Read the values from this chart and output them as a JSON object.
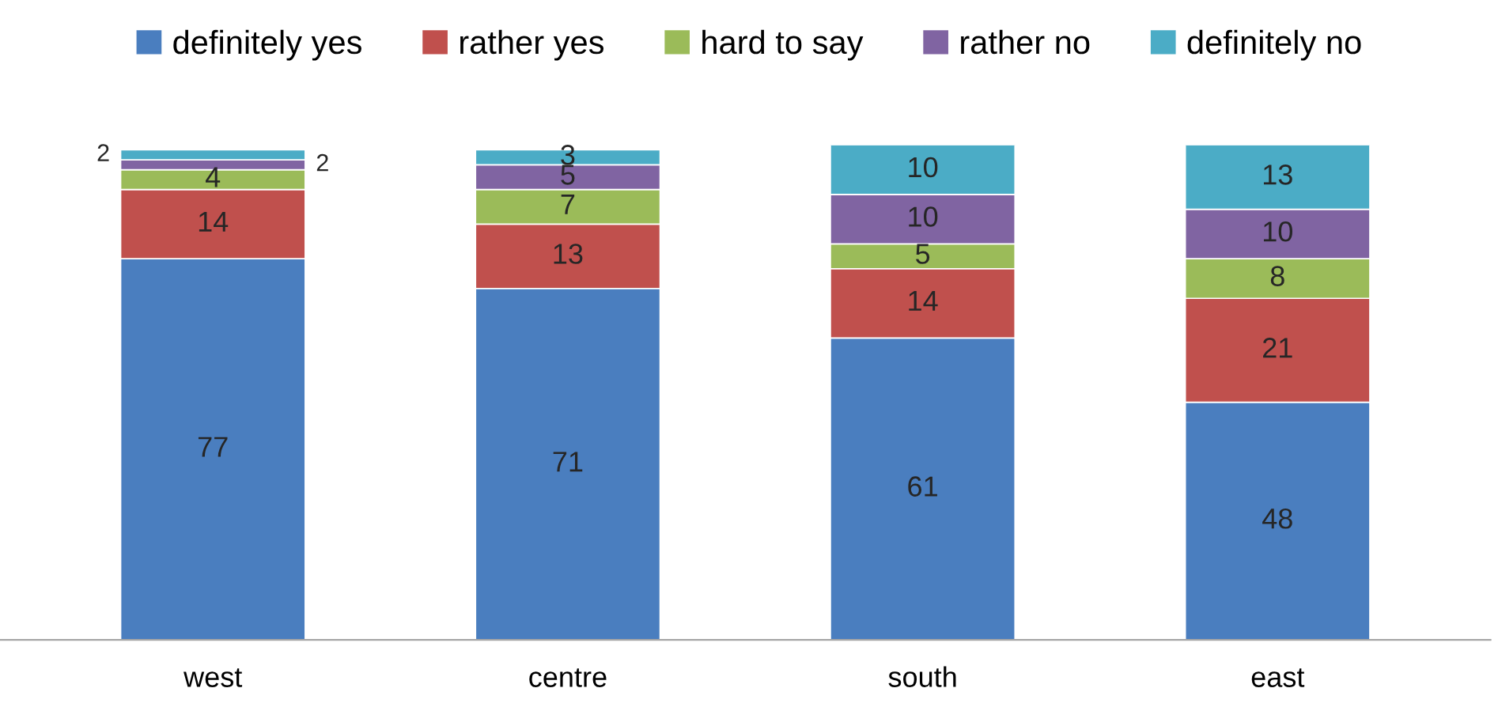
{
  "chart_data": {
    "type": "bar",
    "stacked": true,
    "categories": [
      "west",
      "centre",
      "south",
      "east"
    ],
    "series": [
      {
        "name": "definitely yes",
        "color": "#4a7ebf",
        "values": [
          77,
          71,
          61,
          48
        ]
      },
      {
        "name": "rather yes",
        "color": "#c0504d",
        "values": [
          14,
          13,
          14,
          21
        ]
      },
      {
        "name": "hard to say",
        "color": "#9bbb59",
        "values": [
          4,
          7,
          5,
          8
        ]
      },
      {
        "name": "rather no",
        "color": "#8064a2",
        "values": [
          2,
          5,
          10,
          10
        ]
      },
      {
        "name": "definitely no",
        "color": "#4bacc6",
        "values": [
          2,
          3,
          10,
          13
        ]
      }
    ],
    "data_labels": true,
    "legend": "top",
    "grid": false,
    "tick_labels": "x"
  }
}
